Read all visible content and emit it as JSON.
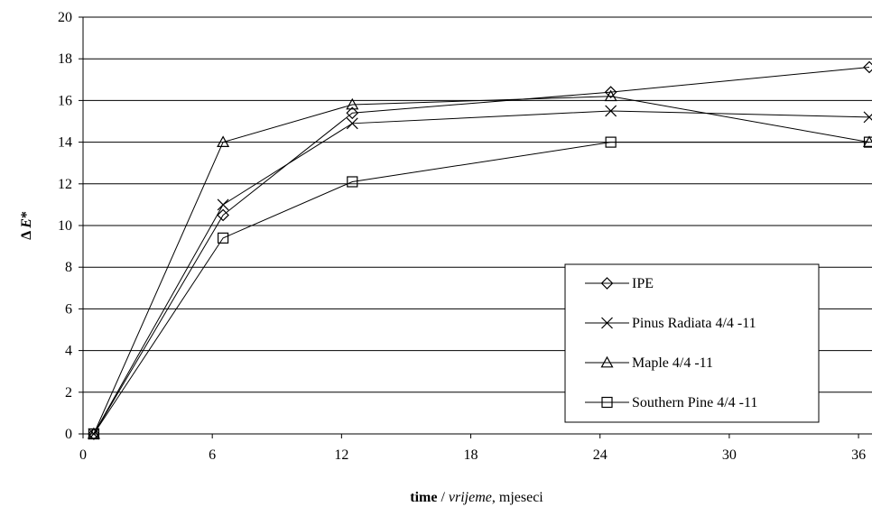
{
  "chart_data": {
    "type": "line",
    "title": "",
    "ylabel": "Δ E*",
    "ylabel_parts": [
      "Δ ",
      "E",
      "*"
    ],
    "xlabel": "time / vrijeme, mjeseci",
    "xlabel_parts": [
      "time",
      " / ",
      "vrijeme",
      ", mjeseci"
    ],
    "xlim": [
      0,
      36.5
    ],
    "ylim": [
      0,
      20
    ],
    "xticks": [
      "0",
      "6",
      "12",
      "18",
      "24",
      "30",
      "36"
    ],
    "yticks": [
      "0",
      "2",
      "4",
      "6",
      "8",
      "10",
      "12",
      "14",
      "16",
      "18",
      "20"
    ],
    "grid": "horizontal",
    "legend_position": "bottom-right",
    "series": [
      {
        "name": "IPE",
        "marker": "diamond",
        "x": [
          0.5,
          6.5,
          12.5,
          24.5,
          36.5
        ],
        "y": [
          0,
          10.5,
          15.4,
          16.4,
          17.6
        ]
      },
      {
        "name": "Pinus Radiata 4/4 -11",
        "marker": "x",
        "x": [
          0.5,
          6.5,
          12.5,
          24.5,
          36.5
        ],
        "y": [
          0,
          11.0,
          14.9,
          15.5,
          15.2
        ]
      },
      {
        "name": "Maple 4/4 -11",
        "marker": "triangle",
        "x": [
          0.5,
          6.5,
          12.5,
          24.5,
          36.5
        ],
        "y": [
          0,
          14.0,
          15.8,
          16.2,
          14.0
        ]
      },
      {
        "name": "Southern Pine 4/4 -11",
        "marker": "square",
        "x": [
          0.5,
          6.5,
          12.5,
          24.5,
          36.5
        ],
        "y": [
          0,
          9.4,
          12.1,
          14.0,
          14.0
        ]
      }
    ]
  }
}
